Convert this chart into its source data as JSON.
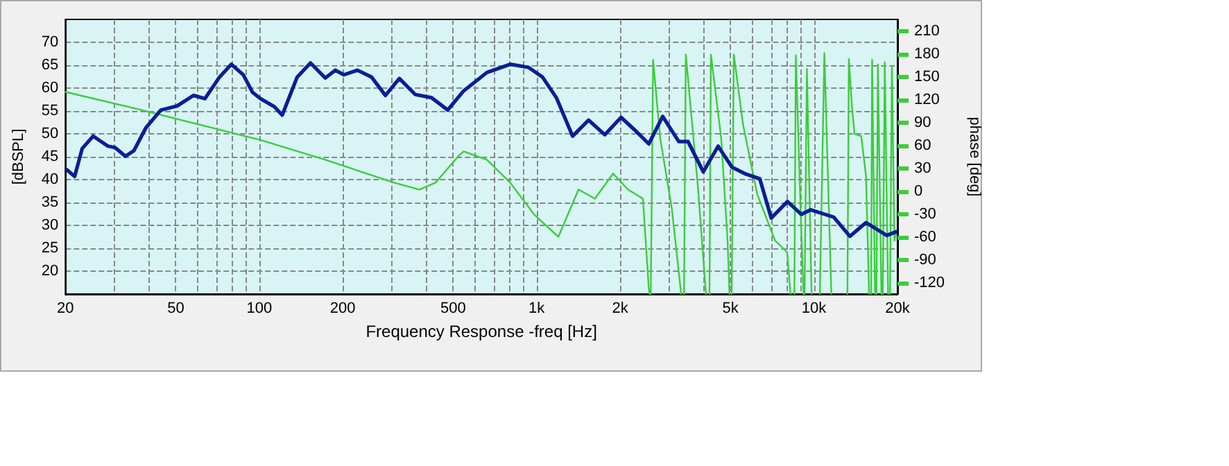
{
  "chart_data": {
    "type": "line",
    "xlabel": "Frequency Response -freq [Hz]",
    "ylabel": "[dBSPL]",
    "y2label": "phase [deg]",
    "log": "x",
    "grid": true,
    "marker": "none",
    "line_style": "solid",
    "xlim": [
      20,
      20000
    ],
    "xticks": [
      20,
      {
        "value": 30,
        "label": null
      },
      {
        "value": 40,
        "label": null
      },
      50,
      {
        "value": 60,
        "label": null
      },
      {
        "value": 70,
        "label": null
      },
      {
        "value": 80,
        "label": null
      },
      {
        "value": 90,
        "label": null
      },
      100,
      200,
      {
        "value": 300,
        "label": null
      },
      {
        "value": 400,
        "label": null
      },
      500,
      {
        "value": 600,
        "label": null
      },
      {
        "value": 700,
        "label": null
      },
      {
        "value": 800,
        "label": null
      },
      {
        "value": 900,
        "label": null
      },
      {
        "value": 1000,
        "label": "1k"
      },
      {
        "value": 2000,
        "label": "2k"
      },
      {
        "value": 3000,
        "label": null
      },
      {
        "value": 4000,
        "label": null
      },
      {
        "value": 5000,
        "label": "5k"
      },
      {
        "value": 6000,
        "label": null
      },
      {
        "value": 7000,
        "label": null
      },
      {
        "value": 8000,
        "label": null
      },
      {
        "value": 9000,
        "label": null
      },
      {
        "value": 10000,
        "label": "10k"
      },
      {
        "value": 20000,
        "label": "20k"
      }
    ],
    "ylim": [
      15,
      75
    ],
    "yticks": [
      20,
      25,
      30,
      35,
      40,
      45,
      50,
      55,
      60,
      65,
      70
    ],
    "y2lim": [
      -135,
      225
    ],
    "y2ticks": [
      -120,
      -90,
      -60,
      -30,
      0,
      30,
      60,
      90,
      120,
      150,
      180,
      210
    ],
    "series": [
      {
        "color": "#0a1e96",
        "x": [
          20.2,
          21.6,
          23,
          25.2,
          28.5,
          30.2,
          32.9,
          35.3,
          39,
          44.2,
          50.6,
          57.9,
          63.7,
          71.9,
          79.3,
          87.6,
          94.5,
          101,
          113.5,
          121,
          137,
          153,
          173,
          188,
          202,
          226,
          254,
          285,
          320,
          365,
          418,
          478,
          546,
          662,
          803,
          936,
          1050,
          1178,
          1348,
          1540,
          1762,
          2016,
          2262,
          2538,
          2848,
          3255,
          3516,
          3990,
          4514,
          5062,
          5683,
          6376,
          7015,
          8025,
          9002,
          9722,
          11780,
          13480,
          15400,
          18300,
          19770
        ],
        "values": [
          42.2,
          40.7,
          46.8,
          49.5,
          47.3,
          47,
          45.1,
          46.3,
          51.3,
          55.2,
          56.1,
          58.4,
          57.7,
          62.4,
          65.2,
          62.9,
          59.1,
          57.7,
          55.9,
          54.1,
          62.4,
          65.5,
          62.2,
          63.9,
          62.9,
          63.9,
          62.4,
          58.4,
          62.1,
          58.6,
          57.9,
          55.2,
          59.4,
          63.4,
          65.2,
          64.5,
          62.4,
          57.9,
          49.5,
          53,
          49.8,
          53.6,
          50.8,
          47.8,
          53.8,
          48.3,
          48.3,
          41.7,
          47.3,
          42.7,
          41.2,
          40.2,
          31.6,
          35.2,
          32.4,
          33.4,
          31.8,
          27.6,
          30.6,
          27.8,
          28.6
        ]
      },
      {
        "color": "#3ccc3c",
        "axis": "y2",
        "x": [
          20,
          37,
          101,
          173,
          306,
          378,
          432,
          526,
          546,
          662,
          803,
          981,
          1198,
          1416,
          1622,
          1887,
          2133,
          2417,
          2538,
          2556,
          2560,
          2580,
          2630,
          2790,
          3070,
          3320,
          3330,
          3400,
          3450,
          3810,
          4080,
          4100,
          4200,
          4250,
          4630,
          4880,
          4960,
          5000,
          5050,
          5140,
          5550,
          6240,
          7240,
          8000,
          8230,
          8300,
          8500,
          8600,
          9000,
          9170,
          9200,
          9250,
          9430,
          9800,
          9900,
          10500,
          10900,
          11550,
          11700,
          13200,
          13360,
          13700,
          14000,
          14800,
          15400,
          15800,
          15900,
          16070,
          16200,
          16600,
          16700,
          16800,
          17000,
          17500,
          17600,
          17700,
          18000,
          18500,
          18600,
          18800,
          19100,
          19500,
          19800
        ],
        "values": [
          130,
          107,
          67,
          41,
          11,
          2,
          11,
          47,
          52,
          41,
          11,
          -31,
          -60,
          2,
          -10,
          23,
          2,
          -10,
          -128,
          -135,
          null,
          -135,
          172,
          69,
          -22,
          -135,
          null,
          -135,
          179,
          8,
          -135,
          null,
          -135,
          179,
          69,
          -65,
          -135,
          null,
          -135,
          179,
          87,
          -4,
          -65,
          -80,
          -135,
          null,
          -135,
          178,
          -52,
          -135,
          null,
          -135,
          160,
          -135,
          null,
          -135,
          181,
          -135,
          null,
          -135,
          173,
          111,
          75,
          72,
          20,
          -135,
          null,
          -135,
          172,
          -135,
          null,
          -135,
          166,
          -135,
          null,
          -135,
          169,
          -135,
          null,
          -135,
          163,
          -65,
          -53
        ]
      }
    ]
  }
}
